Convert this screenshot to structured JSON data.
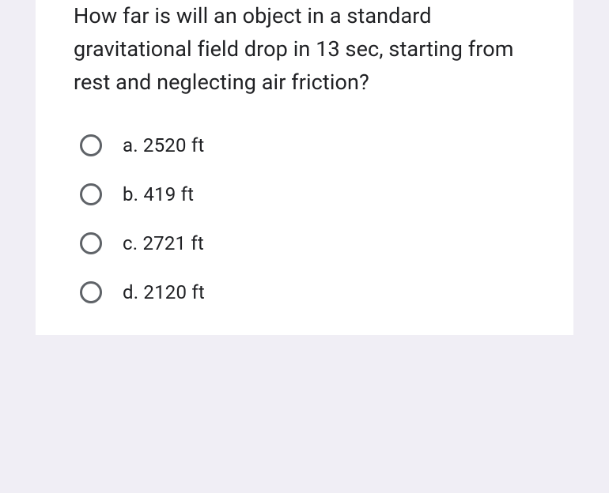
{
  "question": {
    "text": "How far is will an object in a standard gravitational field drop in 13 sec, starting from rest and neglecting air friction?"
  },
  "options": [
    {
      "letter": "a",
      "text": "a. 2520 ft",
      "selected": false
    },
    {
      "letter": "b",
      "text": "b. 419 ft",
      "selected": false
    },
    {
      "letter": "c",
      "text": "c. 2721 ft",
      "selected": false
    },
    {
      "letter": "d",
      "text": "d. 2120 ft",
      "selected": false
    }
  ],
  "colors": {
    "background": "#f0eef5",
    "card_background": "#ffffff",
    "text": "#202124",
    "radio_border": "#5f6368"
  },
  "typography": {
    "question_fontsize": 27,
    "option_fontsize": 24
  }
}
